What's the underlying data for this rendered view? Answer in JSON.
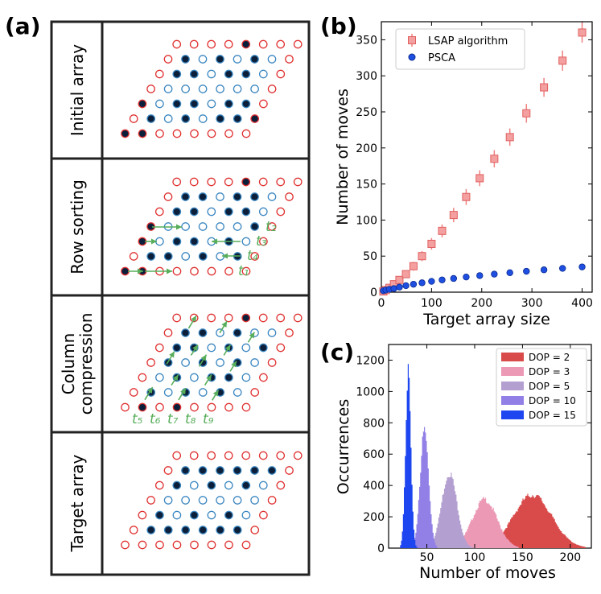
{
  "panel_a": {
    "label": "(a)",
    "rows": [
      {
        "label": "Initial array"
      },
      {
        "label": "Row sorting"
      },
      {
        "label_line1": "Column",
        "label_line2": "compression"
      },
      {
        "label": "Target array"
      }
    ],
    "time_labels": {
      "row_sorting": [
        "t₂",
        "t₃",
        "t₄",
        "t₁"
      ],
      "column_compression": [
        "t₅",
        "t₆",
        "t₇",
        "t₈",
        "t₉"
      ]
    },
    "colors": {
      "red": "#e03030",
      "blue": "#3a86c0",
      "green": "#57ad5a",
      "filled": "#0b1f3a"
    }
  },
  "chart_data": [
    {
      "panel": "(b)",
      "type": "scatter",
      "xlabel": "Target array size",
      "ylabel": "Number of moves",
      "xlim": [
        0,
        420
      ],
      "ylim": [
        0,
        375
      ],
      "xticks": [
        0,
        100,
        200,
        300,
        400
      ],
      "yticks": [
        0,
        50,
        100,
        150,
        200,
        250,
        300,
        350
      ],
      "legend_position": "top-left",
      "series": [
        {
          "name": "LSAP algorithm",
          "color": "#f08080",
          "marker": "square",
          "x": [
            4,
            9,
            16,
            25,
            36,
            49,
            64,
            81,
            100,
            121,
            144,
            169,
            196,
            225,
            256,
            289,
            324,
            361,
            400
          ],
          "y": [
            1,
            3,
            6,
            11,
            17,
            25,
            36,
            50,
            67,
            85,
            107,
            132,
            158,
            185,
            215,
            248,
            284,
            321,
            360
          ],
          "yerr": [
            1,
            2,
            2,
            3,
            4,
            5,
            6,
            7,
            8,
            9,
            10,
            11,
            11,
            12,
            12,
            13,
            13,
            14,
            14
          ]
        },
        {
          "name": "PSCA",
          "color": "#1f4fe0",
          "marker": "circle",
          "x": [
            4,
            9,
            16,
            25,
            36,
            49,
            64,
            81,
            100,
            121,
            144,
            169,
            196,
            225,
            256,
            289,
            324,
            361,
            400
          ],
          "y": [
            2,
            3,
            4,
            5,
            7,
            9,
            11,
            13,
            15,
            17,
            19,
            21,
            23,
            25,
            27,
            29,
            31,
            33,
            35
          ]
        }
      ]
    },
    {
      "panel": "(c)",
      "type": "histogram",
      "xlabel": "Number of moves",
      "ylabel": "Occurrences",
      "xlim": [
        10,
        222
      ],
      "ylim": [
        0,
        1300
      ],
      "xticks": [
        50,
        100,
        150,
        200
      ],
      "yticks": [
        0,
        200,
        400,
        600,
        800,
        1000,
        1200
      ],
      "legend_position": "top-right",
      "series": [
        {
          "name": "DOP = 2",
          "color": "#d94b4b",
          "mean": 160,
          "sd": 20,
          "peak": 340,
          "range": [
            115,
            215
          ]
        },
        {
          "name": "DOP = 3",
          "color": "#ec99b6",
          "mean": 110,
          "sd": 13,
          "peak": 310,
          "range": [
            75,
            145
          ]
        },
        {
          "name": "DOP = 5",
          "color": "#b4a0d0",
          "mean": 73,
          "sd": 8,
          "peak": 480,
          "range": [
            50,
            98
          ]
        },
        {
          "name": "DOP = 10",
          "color": "#9280e6",
          "mean": 47,
          "sd": 4.5,
          "peak": 750,
          "range": [
            36,
            60
          ]
        },
        {
          "name": "DOP = 15",
          "color": "#1e46f0",
          "mean": 30,
          "sd": 2.8,
          "peak": 1110,
          "range": [
            22,
            40
          ]
        }
      ]
    }
  ]
}
